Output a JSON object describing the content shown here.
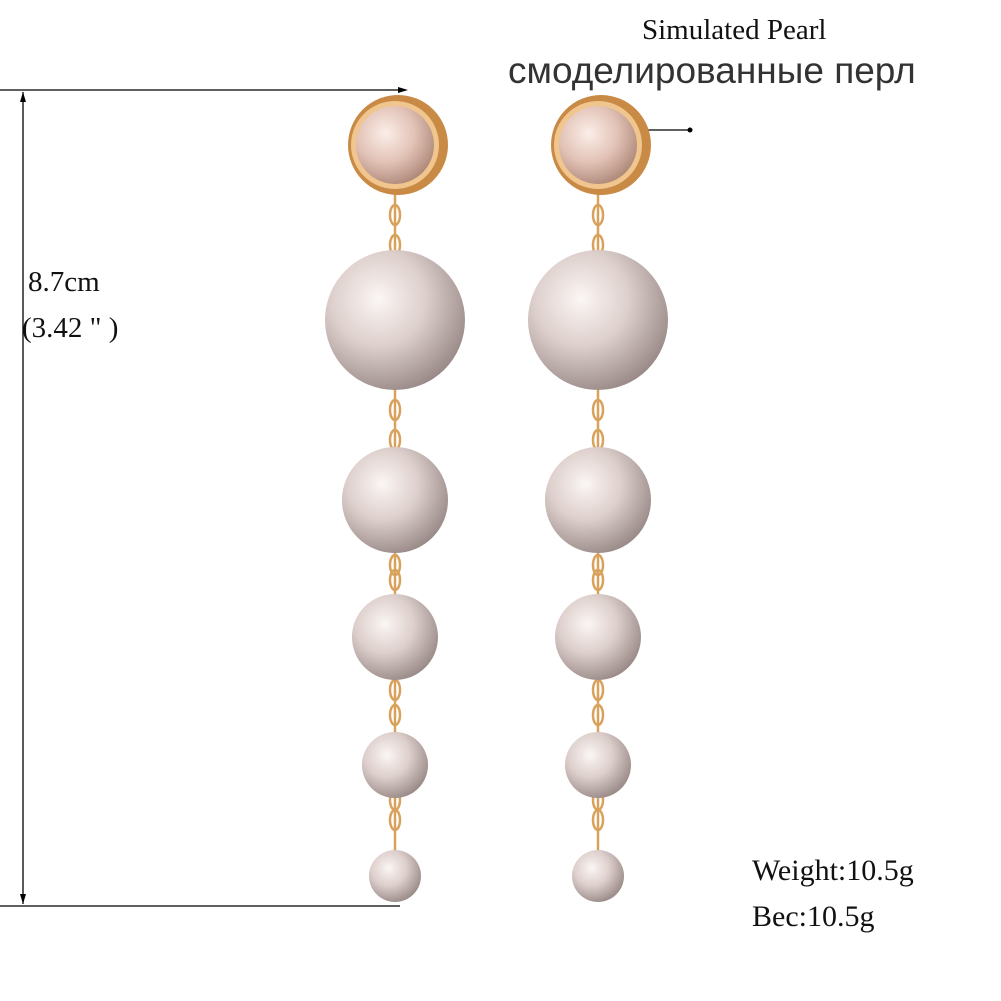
{
  "labels": {
    "material_en": "Simulated Pearl",
    "material_ru": "смоделированные перл",
    "length_cm": "8.7cm",
    "length_in": "(3.42 \" )",
    "weight_en": "Weight:10.5g",
    "weight_ru": "Bec:10.5g"
  },
  "colors": {
    "pearl": "#d9c9c6",
    "gold": "#d9a25c",
    "line": "#000000"
  }
}
